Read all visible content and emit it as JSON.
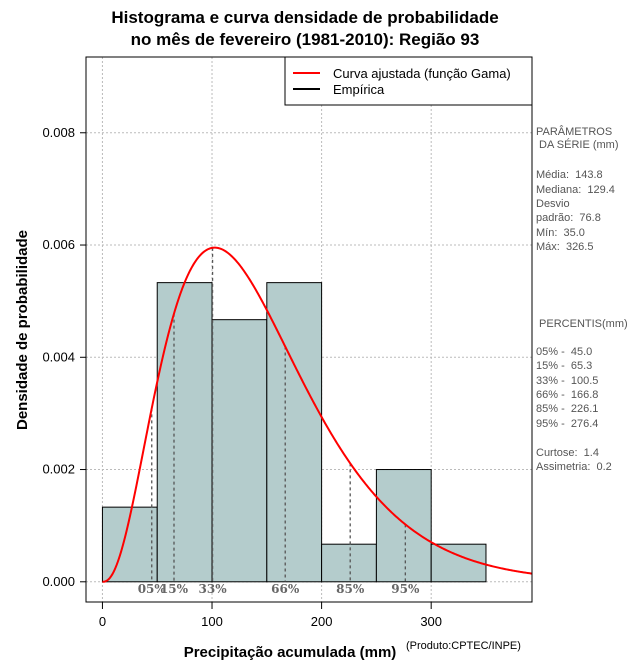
{
  "title": {
    "line1": "Histograma e curva densidade de probabilidade",
    "line2": "no mês de fevereiro (1981-2010): Região 93"
  },
  "credit": "(Produto:CPTEC/INPE)",
  "legend": {
    "fitted": "Curva ajustada (função Gama)",
    "empirical": "Empírica"
  },
  "parameters": {
    "heading1": "PARÂMETROS",
    "heading2": " DA SÉRIE (mm)",
    "mean": "Média:  143.8",
    "median": "Mediana:  129.4",
    "sd1": "Desvio",
    "sd2": "padrão:  76.8",
    "min": "Mín:  35.0",
    "max": "Máx:  326.5"
  },
  "percentile_panel": {
    "heading": " PERCENTIS(mm)",
    "p05": "05% -  45.0",
    "p15": "15% -  65.3",
    "p33": "33% -  100.5",
    "p66": "66% -  166.8",
    "p85": "85% -  226.1",
    "p95": "95% -  276.4",
    "kurtosis": "Curtose:  1.4",
    "skewness": "Assimetria:  0.2"
  },
  "colors": {
    "bar_fill": "#b4cccc",
    "curve": "#ff0000",
    "percentile_line": "#555555"
  },
  "chart_data": {
    "type": "bar",
    "title": "Histograma e curva densidade de probabilidade no mês de fevereiro (1981-2010): Região 93",
    "xlabel": "Precipitação acumulada (mm)",
    "ylabel": "Densidade de probabilidade",
    "xlim": [
      -15,
      392
    ],
    "ylim": [
      -0.00036,
      0.00935
    ],
    "xticks": [
      0,
      100,
      200,
      300
    ],
    "yticks": [
      0.0,
      0.002,
      0.004,
      0.006,
      0.008
    ],
    "xtick_labels": [
      "0",
      "100",
      "200",
      "300"
    ],
    "ytick_labels": [
      "0.000",
      "0.002",
      "0.004",
      "0.006",
      "0.008"
    ],
    "grid": true,
    "bins": [
      {
        "start": 0,
        "end": 50,
        "density": 0.00133
      },
      {
        "start": 50,
        "end": 100,
        "density": 0.00533
      },
      {
        "start": 100,
        "end": 150,
        "density": 0.00467
      },
      {
        "start": 150,
        "end": 200,
        "density": 0.00533
      },
      {
        "start": 200,
        "end": 250,
        "density": 0.00067
      },
      {
        "start": 250,
        "end": 300,
        "density": 0.002
      },
      {
        "start": 300,
        "end": 350,
        "density": 0.00067
      }
    ],
    "fitted_curve": {
      "name": "Curva ajustada (função Gama)",
      "distribution": "gamma",
      "shape": 3.5,
      "scale": 41,
      "x_range": [
        0,
        392
      ]
    },
    "percentiles": [
      {
        "label": "05%",
        "value": 45.0
      },
      {
        "label": "15%",
        "value": 65.3
      },
      {
        "label": "33%",
        "value": 100.5
      },
      {
        "label": "66%",
        "value": 166.8
      },
      {
        "label": "85%",
        "value": 226.1
      },
      {
        "label": "95%",
        "value": 276.4
      }
    ],
    "legend": [
      "Curva ajustada (função Gama)",
      "Empírica"
    ]
  }
}
